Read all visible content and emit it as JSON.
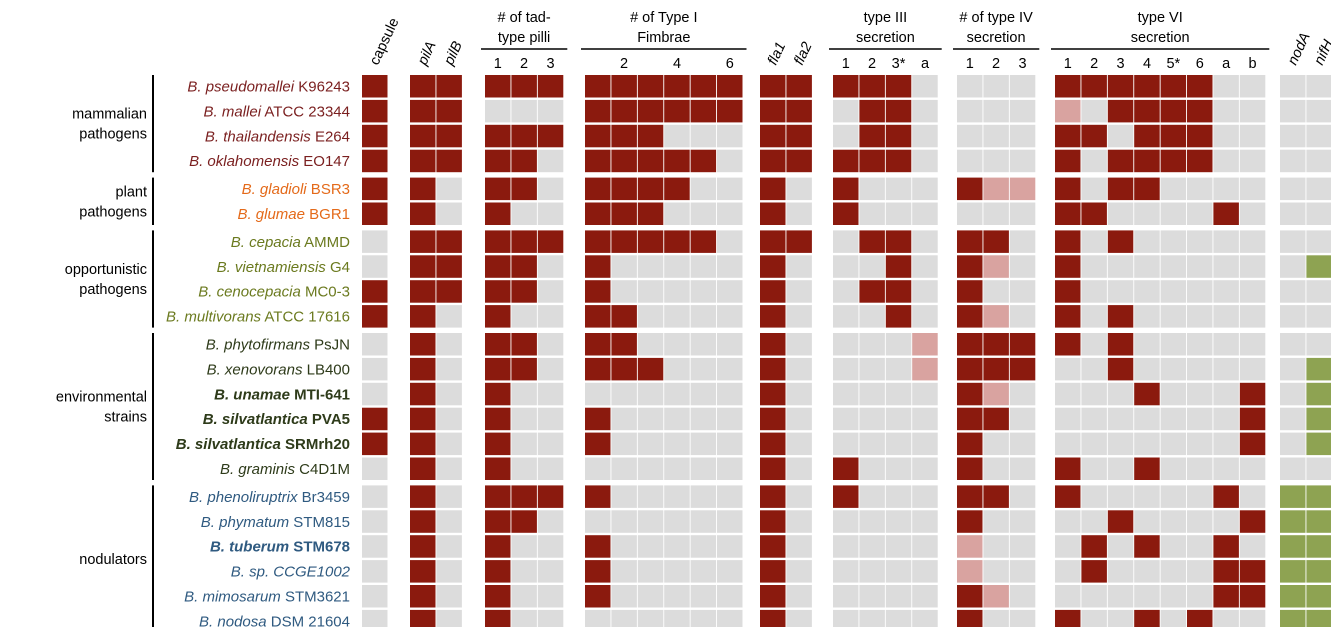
{
  "chart_data": {
    "type": "heatmap",
    "legend": {
      "present": "#8b1a0e",
      "partial": "#d9a3a0",
      "absent": "#dcdcdc",
      "nif": "#8ea352"
    },
    "column_groups": [
      {
        "title_lines": [],
        "columns": [
          {
            "label": "capsule",
            "italic": false,
            "rotated": true
          }
        ]
      },
      {
        "title_lines": [],
        "columns": [
          {
            "label": "pilA",
            "italic": true,
            "rotated": true
          },
          {
            "label": "pilB",
            "italic": true,
            "rotated": true
          }
        ]
      },
      {
        "title_lines": [
          "# of tad-",
          "type pilli"
        ],
        "columns": [
          {
            "label": "1"
          },
          {
            "label": "2"
          },
          {
            "label": "3"
          }
        ]
      },
      {
        "title_lines": [
          "# of Type I",
          "Fimbrae"
        ],
        "columns": [
          {
            "label": ""
          },
          {
            "label": "2"
          },
          {
            "label": ""
          },
          {
            "label": "4"
          },
          {
            "label": ""
          },
          {
            "label": "6"
          }
        ]
      },
      {
        "title_lines": [],
        "columns": [
          {
            "label": "fla1",
            "italic": true,
            "rotated": true
          },
          {
            "label": "fla2",
            "italic": true,
            "rotated": true
          }
        ]
      },
      {
        "title_lines": [
          "type III",
          "secretion"
        ],
        "columns": [
          {
            "label": "1"
          },
          {
            "label": "2"
          },
          {
            "label": "3*"
          },
          {
            "label": "a"
          }
        ]
      },
      {
        "title_lines": [
          "# of type IV",
          "secretion"
        ],
        "columns": [
          {
            "label": "1"
          },
          {
            "label": "2"
          },
          {
            "label": "3"
          }
        ]
      },
      {
        "title_lines": [
          "type VI",
          "secretion"
        ],
        "columns": [
          {
            "label": "1"
          },
          {
            "label": "2"
          },
          {
            "label": "3"
          },
          {
            "label": "4"
          },
          {
            "label": "5*"
          },
          {
            "label": "6"
          },
          {
            "label": "a"
          },
          {
            "label": "b"
          }
        ]
      },
      {
        "title_lines": [],
        "columns": [
          {
            "label": "nodA",
            "italic": true,
            "rotated": true
          },
          {
            "label": "nifH",
            "italic": true,
            "rotated": true
          }
        ]
      }
    ],
    "row_groups": [
      {
        "label_lines": [
          "mammalian",
          "pathogens"
        ],
        "rows": [
          0,
          1,
          2,
          3
        ]
      },
      {
        "label_lines": [
          "plant",
          "pathogens"
        ],
        "rows": [
          4,
          5
        ]
      },
      {
        "label_lines": [
          "opportunistic",
          "pathogens"
        ],
        "rows": [
          6,
          7,
          8,
          9
        ]
      },
      {
        "label_lines": [
          "environmental",
          "strains"
        ],
        "rows": [
          10,
          11,
          12,
          13,
          14,
          15
        ]
      },
      {
        "label_lines": [
          "nodulators"
        ],
        "rows": [
          16,
          17,
          18,
          19,
          20,
          21
        ]
      }
    ],
    "rows": [
      {
        "species": "B. pseudomallei",
        "strain": "K96243",
        "color": "#7a1f1f",
        "bold": false,
        "cells": "1 11 111 111111 11 1110 000 11111100 00"
      },
      {
        "species": "B. mallei",
        "strain": "ATCC 23344",
        "color": "#7a1f1f",
        "bold": false,
        "cells": "1 11 000 111111 11 0110 000 p0111100 00"
      },
      {
        "species": "B. thailandensis",
        "strain": "E264",
        "color": "#7a1f1f",
        "bold": false,
        "cells": "1 11 111 111000 11 0110 000 11011100 00"
      },
      {
        "species": "B. oklahomensis",
        "strain": "EO147",
        "color": "#7a1f1f",
        "bold": false,
        "cells": "1 11 110 111110 11 1110 000 10111100 00"
      },
      {
        "species": "B. gladioli",
        "strain": "BSR3",
        "color": "#e46a1a",
        "bold": false,
        "cells": "1 10 110 111100 10 1000 1pp 10110000 00"
      },
      {
        "species": "B. glumae",
        "strain": "BGR1",
        "color": "#e46a1a",
        "bold": false,
        "cells": "1 10 100 111000 10 1000 000 11000010 00"
      },
      {
        "species": "B. cepacia",
        "strain": "AMMD",
        "color": "#6b7a1f",
        "bold": false,
        "cells": "0 11 111 111110 11 0110 110 10100000 00"
      },
      {
        "species": "B. vietnamiensis",
        "strain": "G4",
        "color": "#6b7a1f",
        "bold": false,
        "cells": "0 11 110 100000 10 0010 1p0 10000000 0g"
      },
      {
        "species": "B. cenocepacia",
        "strain": "MC0-3",
        "color": "#6b7a1f",
        "bold": false,
        "cells": "1 11 110 100000 10 0110 100 10000000 00"
      },
      {
        "species": "B. multivorans",
        "strain": "ATCC 17616",
        "color": "#6b7a1f",
        "bold": false,
        "cells": "1 10 100 110000 10 0010 1p0 10100000 00"
      },
      {
        "species": "B. phytofirmans",
        "strain": "PsJN",
        "color": "#2e3b1a",
        "bold": false,
        "cells": "0 10 110 110000 10 000p 111 10100000 00"
      },
      {
        "species": "B. xenovorans",
        "strain": "LB400",
        "color": "#2e3b1a",
        "bold": false,
        "cells": "0 10 110 111000 10 000p 111 00100000 0g"
      },
      {
        "species": "B. unamae",
        "strain": "MTI-641",
        "color": "#2e3b1a",
        "bold": true,
        "cells": "0 10 100 000000 10 0000 1p0 00010001 0g"
      },
      {
        "species": "B. silvatlantica",
        "strain": "PVA5",
        "color": "#2e3b1a",
        "bold": true,
        "cells": "1 10 100 100000 10 0000 110 00000001 0g"
      },
      {
        "species": "B. silvatlantica",
        "strain": "SRMrh20",
        "color": "#2e3b1a",
        "bold": true,
        "cells": "1 10 100 100000 10 0000 100 00000001 0g"
      },
      {
        "species": "B. graminis",
        "strain": "C4D1M",
        "color": "#2e3b1a",
        "bold": false,
        "cells": "0 10 100 000000 10 1000 100 10010000 00"
      },
      {
        "species": "B. phenoliruptrix",
        "strain": "Br3459",
        "color": "#2f5a80",
        "bold": false,
        "cells": "0 10 111 100000 10 1000 110 10000010 gg"
      },
      {
        "species": "B. phymatum",
        "strain": "STM815",
        "color": "#2f5a80",
        "bold": false,
        "cells": "0 10 110 000000 10 0000 100 00100001 gg"
      },
      {
        "species": "B. tuberum",
        "strain": "STM678",
        "color": "#2f5a80",
        "bold": true,
        "cells": "0 10 100 100000 10 0000 p00 01010010 gg"
      },
      {
        "species": "B. sp.",
        "strain": "CCGE1002",
        "color": "#2f5a80",
        "bold": false,
        "strain_italic": true,
        "cells": "0 10 100 100000 10 0000 p00 01000011 gg"
      },
      {
        "species": "B. mimosarum",
        "strain": "STM3621",
        "color": "#2f5a80",
        "bold": false,
        "cells": "0 10 100 100000 10 0000 1p0 00000011 gg"
      },
      {
        "species": "B. nodosa",
        "strain": "DSM 21604",
        "color": "#2f5a80",
        "bold": false,
        "cells": "0 10 100 000000 10 0000 100 10010100 gg"
      }
    ]
  }
}
